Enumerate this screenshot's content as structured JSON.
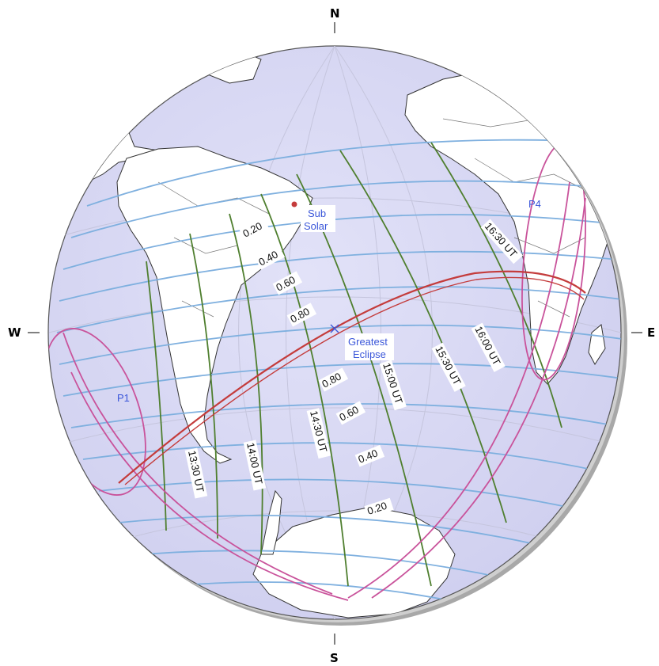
{
  "compass": {
    "north": "N",
    "south": "S",
    "west": "W",
    "east": "E"
  },
  "contact_points": {
    "p1": "P1",
    "p4": "P4"
  },
  "sub_solar": {
    "line1": "Sub",
    "line2": "Solar"
  },
  "greatest_eclipse": {
    "line1": "Greatest",
    "line2": "Eclipse"
  },
  "magnitude_labels": [
    "0.20",
    "0.40",
    "0.60",
    "0.80",
    "0.80",
    "0.60",
    "0.40",
    "0.20"
  ],
  "time_labels": [
    "13:30 UT",
    "14:00 UT",
    "14:30 UT",
    "15:00 UT",
    "15:30 UT",
    "16:00 UT",
    "16:30 UT"
  ],
  "colors": {
    "ocean": "#dcdcf6",
    "land": "#ffffff",
    "coast": "#333333",
    "magnitude_line": "#7fb0df",
    "time_line": "#4f7f2f",
    "central_path": "#c43c3c",
    "penumbra_limit": "#c9539b",
    "graticule": "#c5c5dd",
    "shadow_rim": "#a9a9a9"
  }
}
